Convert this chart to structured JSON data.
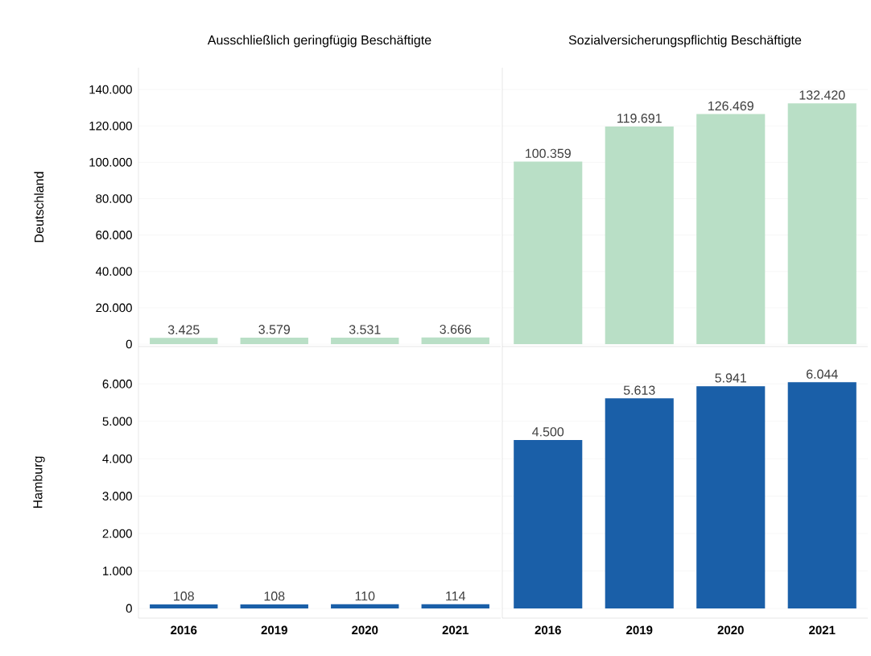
{
  "chart_data": [
    {
      "type": "bar",
      "title": "Ausschließlich geringfügig Beschäftigte",
      "ylabel": "Deutschland",
      "categories": [
        "2016",
        "2019",
        "2020",
        "2021"
      ],
      "values": [
        3425,
        3579,
        3531,
        3666
      ],
      "value_labels": [
        "3.425",
        "3.579",
        "3.531",
        "3.666"
      ],
      "color": "#b9dfc6",
      "ylim": [
        -1300,
        152000
      ],
      "yticks": [
        {
          "value": 0,
          "label": "0"
        },
        {
          "value": 20000,
          "label": "20.000"
        },
        {
          "value": 40000,
          "label": "40.000"
        },
        {
          "value": 60000,
          "label": "60.000"
        },
        {
          "value": 80000,
          "label": "80.000"
        },
        {
          "value": 100000,
          "label": "100.000"
        },
        {
          "value": 120000,
          "label": "120.000"
        },
        {
          "value": 140000,
          "label": "140.000"
        }
      ],
      "grid": "y",
      "tick_labels": "y"
    },
    {
      "type": "bar",
      "title": "Sozialversicherungspflichtig Beschäftigte",
      "categories": [
        "2016",
        "2019",
        "2020",
        "2021"
      ],
      "values": [
        100359,
        119691,
        126469,
        132420
      ],
      "value_labels": [
        "100.359",
        "119.691",
        "126.469",
        "132.420"
      ],
      "color": "#b9dfc6",
      "ylim": [
        -1300,
        152000
      ],
      "yticks": [
        {
          "value": 0,
          "label": null
        },
        {
          "value": 20000,
          "label": null
        },
        {
          "value": 40000,
          "label": null
        },
        {
          "value": 60000,
          "label": null
        },
        {
          "value": 80000,
          "label": null
        },
        {
          "value": 100000,
          "label": null
        },
        {
          "value": 120000,
          "label": null
        },
        {
          "value": 140000,
          "label": null
        }
      ],
      "grid": "y",
      "tick_labels": false
    },
    {
      "type": "bar",
      "ylabel": "Hamburg",
      "categories": [
        "2016",
        "2019",
        "2020",
        "2021"
      ],
      "values": [
        108,
        108,
        110,
        114
      ],
      "value_labels": [
        "108",
        "108",
        "110",
        "114"
      ],
      "color": "#1a5fa8",
      "ylim": [
        -260,
        7000
      ],
      "yticks": [
        {
          "value": 0,
          "label": "0"
        },
        {
          "value": 1000,
          "label": "1.000"
        },
        {
          "value": 2000,
          "label": "2.000"
        },
        {
          "value": 3000,
          "label": "3.000"
        },
        {
          "value": 4000,
          "label": "4.000"
        },
        {
          "value": 5000,
          "label": "5.000"
        },
        {
          "value": 6000,
          "label": "6.000"
        }
      ],
      "grid": "y"
    },
    {
      "type": "bar",
      "categories": [
        "2016",
        "2019",
        "2020",
        "2021"
      ],
      "values": [
        4500,
        5613,
        5941,
        6044
      ],
      "value_labels": [
        "4.500",
        "5.613",
        "5.941",
        "6.044"
      ],
      "color": "#1a5fa8",
      "ylim": [
        -260,
        7000
      ],
      "yticks": [
        {
          "value": 0,
          "label": null
        },
        {
          "value": 1000,
          "label": null
        },
        {
          "value": 2000,
          "label": null
        },
        {
          "value": 3000,
          "label": null
        },
        {
          "value": 4000,
          "label": null
        },
        {
          "value": 5000,
          "label": null
        },
        {
          "value": 6000,
          "label": null
        }
      ],
      "grid": "y",
      "tick_labels": "x"
    }
  ]
}
